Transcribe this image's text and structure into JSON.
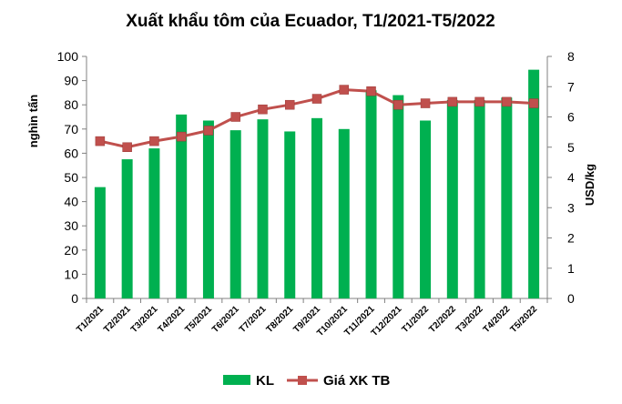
{
  "chart_data": {
    "type": "bar",
    "title": "Xuất khẩu tôm của Ecuador, T1/2021-T5/2022",
    "categories": [
      "T1/2021",
      "T2/2021",
      "T3/2021",
      "T4/2021",
      "T5/2021",
      "T6/2021",
      "T7/2021",
      "T8/2021",
      "T9/2021",
      "T10/2021",
      "T11/2021",
      "T12/2021",
      "T1/2022",
      "T2/2022",
      "T3/2022",
      "T4/2022",
      "T5/2022"
    ],
    "series": [
      {
        "name": "KL",
        "type": "bar",
        "axis": "left",
        "color": "#00b050",
        "values": [
          46,
          57.5,
          62,
          76,
          73.5,
          69.5,
          74,
          69,
          74.5,
          70,
          86,
          84,
          73.5,
          82,
          82,
          83,
          94.5
        ]
      },
      {
        "name": "Giá XK TB",
        "type": "line",
        "axis": "right",
        "color": "#c0504d",
        "values": [
          5.2,
          5.0,
          5.2,
          5.35,
          5.55,
          6.0,
          6.25,
          6.4,
          6.6,
          6.9,
          6.85,
          6.4,
          6.45,
          6.5,
          6.5,
          6.5,
          6.45
        ]
      }
    ],
    "ylabel": "nghìn tấn",
    "y2label": "USD/kg",
    "ylim": [
      0,
      100
    ],
    "y2lim": [
      0,
      8
    ],
    "yticks": [
      0,
      10,
      20,
      30,
      40,
      50,
      60,
      70,
      80,
      90,
      100
    ],
    "y2ticks": [
      0,
      1,
      2,
      3,
      4,
      5,
      6,
      7,
      8
    ],
    "grid": false,
    "legend_position": "bottom"
  }
}
